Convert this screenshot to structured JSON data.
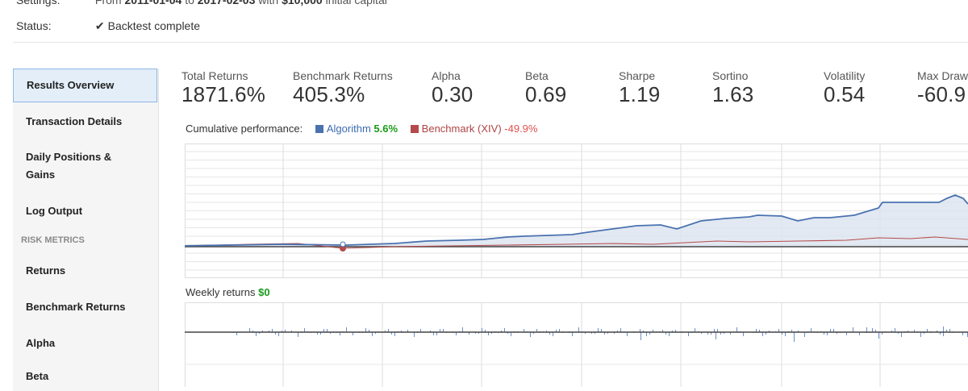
{
  "settings": {
    "label": "Settings:",
    "from_text": "From",
    "start_date": "2011-01-04",
    "to_text": "to",
    "end_date": "2017-02-03",
    "with_text": "with",
    "capital": "$10,000",
    "capital_suffix": "initial capital"
  },
  "status": {
    "label": "Status:",
    "value": "Backtest complete",
    "icon": "check-icon"
  },
  "sidebar": {
    "items": [
      {
        "label": "Results Overview"
      },
      {
        "label": "Transaction Details"
      },
      {
        "label": "Daily Positions &"
      },
      {
        "label": "Gains"
      },
      {
        "label": "Log Output"
      }
    ],
    "section_label": "RISK METRICS",
    "risk_items": [
      {
        "label": "Returns"
      },
      {
        "label": "Benchmark Returns"
      },
      {
        "label": "Alpha"
      },
      {
        "label": "Beta"
      }
    ]
  },
  "metrics": [
    {
      "label": "Total Returns",
      "value": "1871.6%"
    },
    {
      "label": "Benchmark Returns",
      "value": "405.3%"
    },
    {
      "label": "Alpha",
      "value": "0.30"
    },
    {
      "label": "Beta",
      "value": "0.69"
    },
    {
      "label": "Sharpe",
      "value": "1.19"
    },
    {
      "label": "Sortino",
      "value": "1.63"
    },
    {
      "label": "Volatility",
      "value": "0.54"
    },
    {
      "label": "Max Draw",
      "value": "-60.9"
    }
  ],
  "cumulative": {
    "title": "Cumulative performance:",
    "algo_label": "Algorithm",
    "algo_value": "5.6%",
    "bench_label": "Benchmark (XIV)",
    "bench_value": "-49.9%"
  },
  "weekly": {
    "title": "Weekly returns",
    "value": "$0"
  },
  "colors": {
    "algorithm": "#4a72b0",
    "benchmark": "#b54a4a",
    "positive": "#1a9c1a",
    "negative": "#e05050"
  }
}
